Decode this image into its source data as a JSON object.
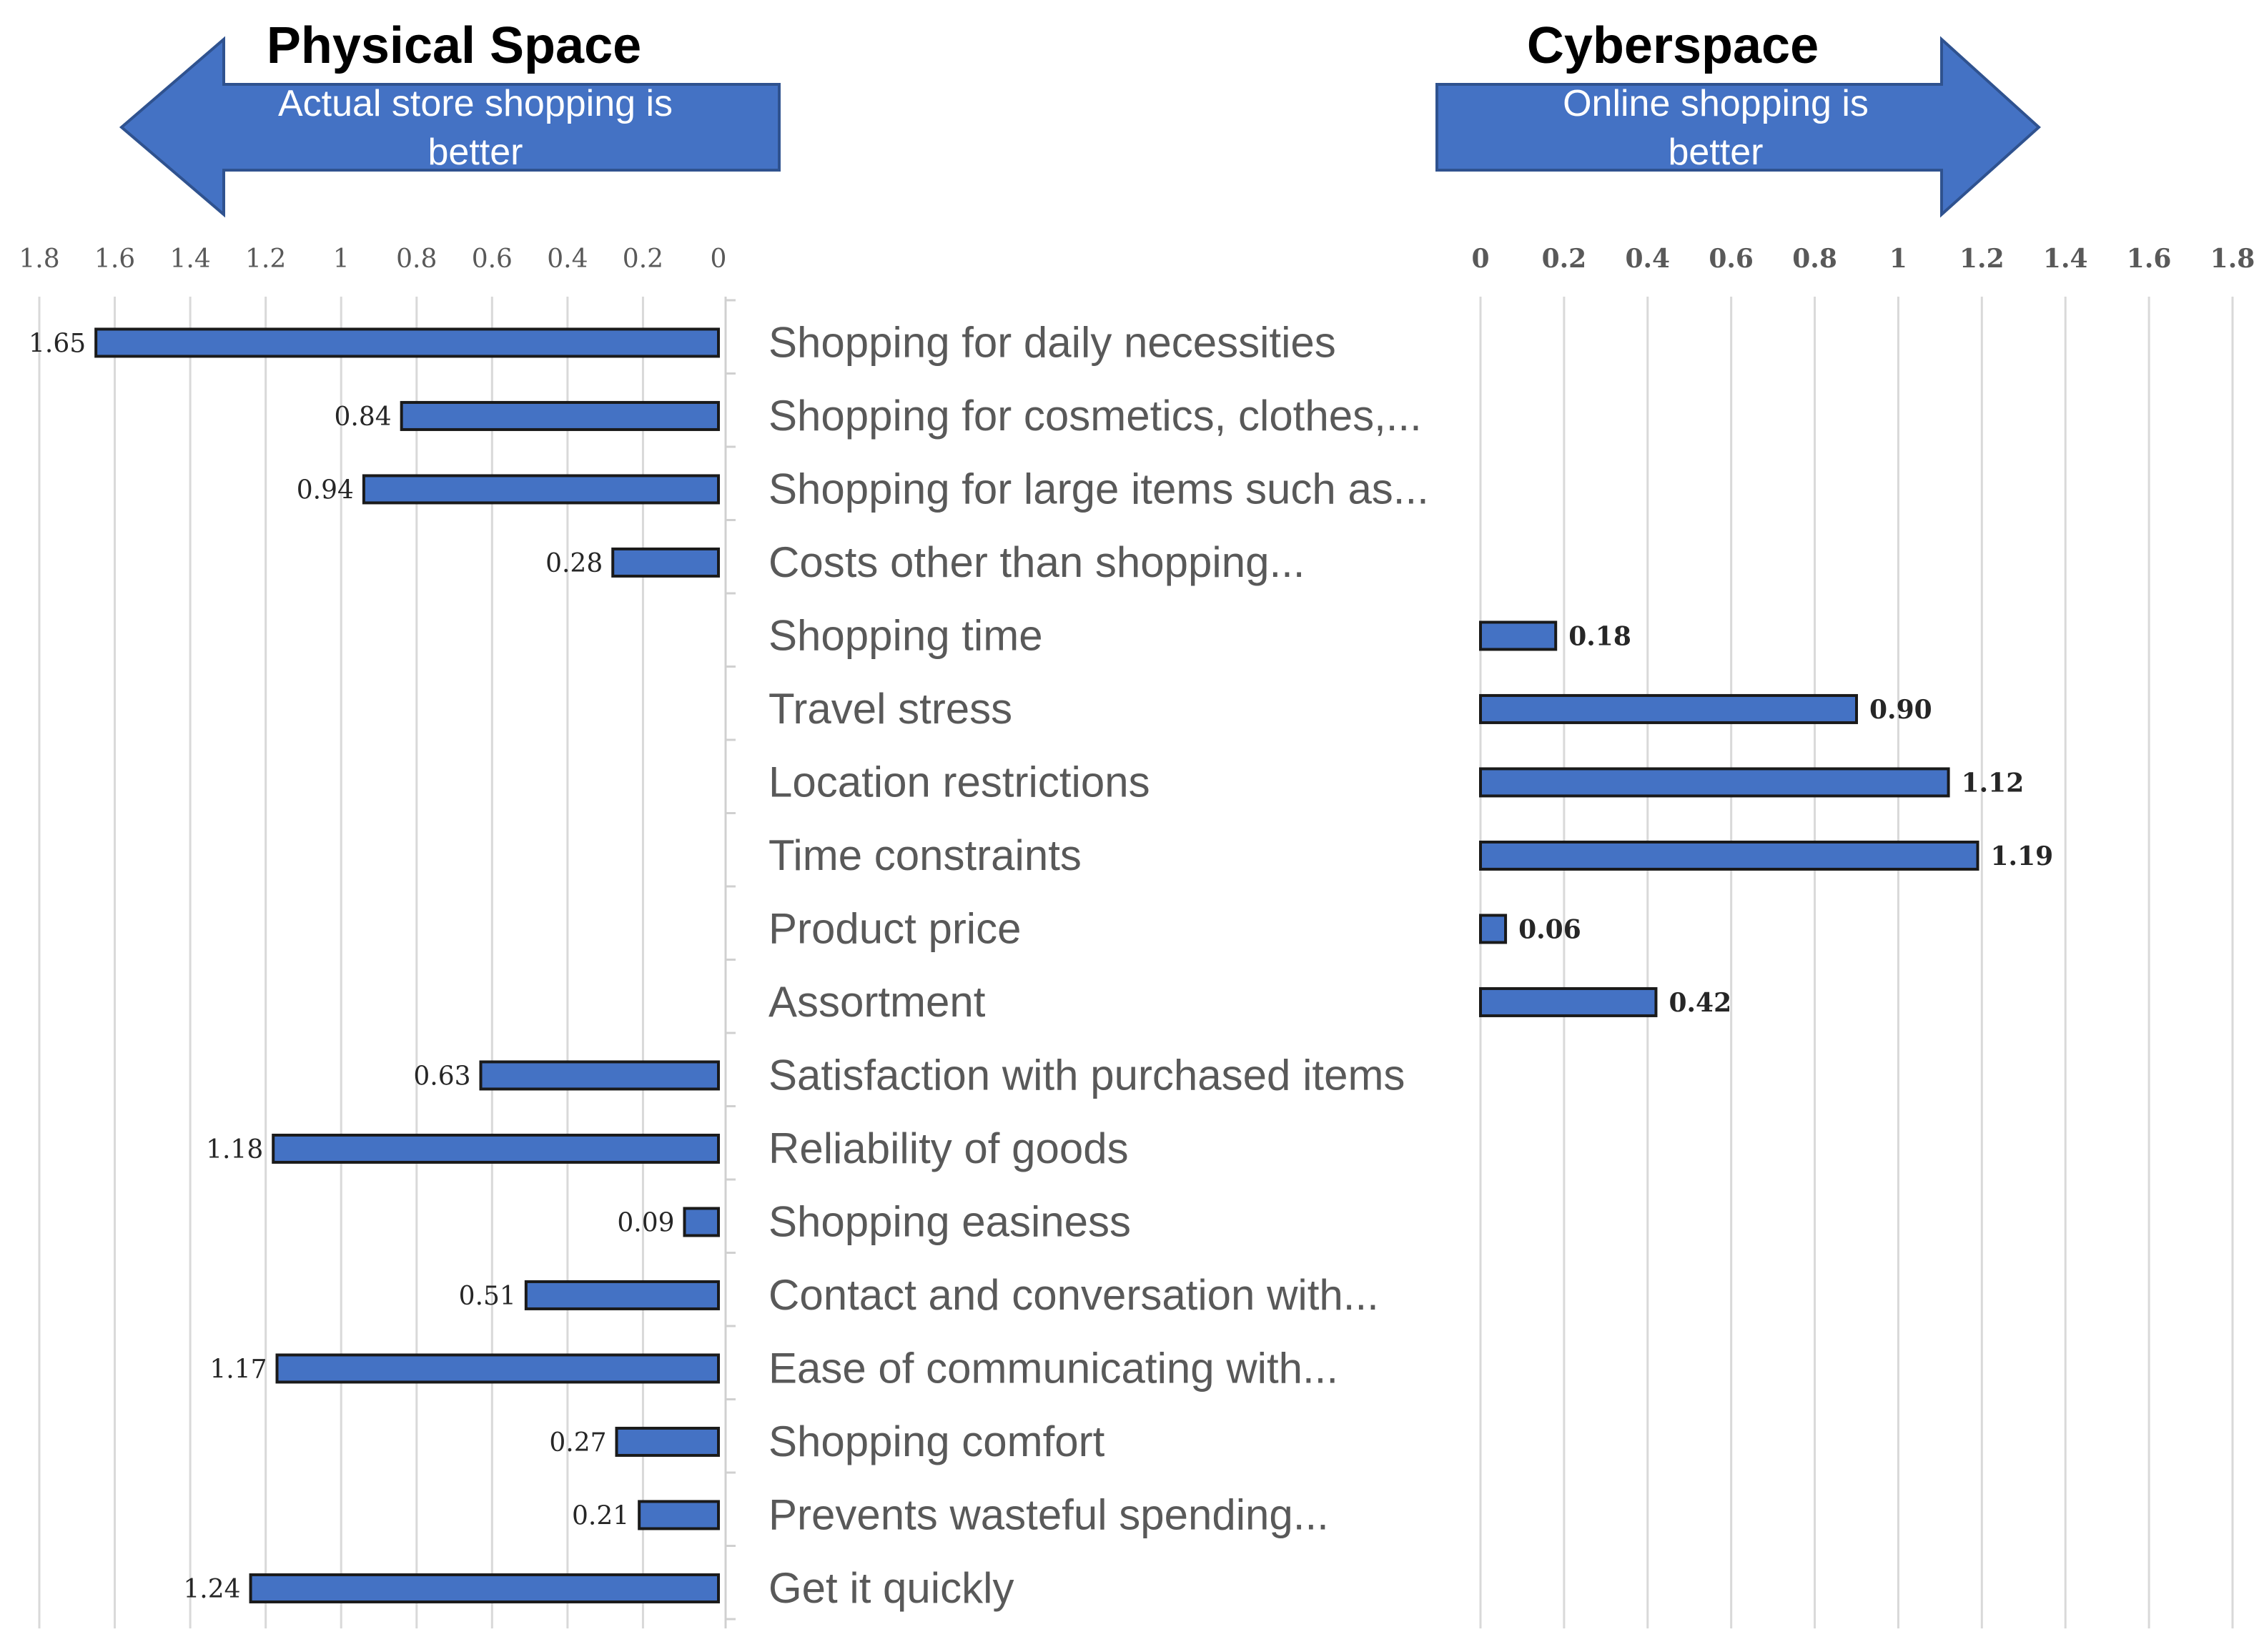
{
  "headers": {
    "left_title": "Physical Space",
    "left_arrow_line1": "Actual store shopping is",
    "left_arrow_line2": "better",
    "right_title": "Cyberspace",
    "right_arrow_line1": "Online shopping is",
    "right_arrow_line2": "better"
  },
  "colors": {
    "bar_fill": "#4472c4",
    "bar_stroke": "#1a1a1a",
    "arrow_fill": "#4472c4",
    "arrow_stroke": "#2f528f",
    "grid": "#d9d9d9"
  },
  "chart_data": {
    "type": "bar",
    "orientation": "horizontal",
    "categories": [
      "Shopping for daily necessities",
      "Shopping for cosmetics, clothes,...",
      "Shopping for large items such as...",
      "Costs other than shopping...",
      "Shopping time",
      "Travel stress",
      "Location restrictions",
      "Time constraints",
      "Product price",
      "Assortment",
      "Satisfaction with purchased items",
      "Reliability of goods",
      "Shopping easiness",
      "Contact and conversation with...",
      "Ease of communicating with...",
      "Shopping comfort",
      "Prevents wasteful spending...",
      "Get it quickly"
    ],
    "left": {
      "label": "Physical Space",
      "xlim": [
        0,
        1.8
      ],
      "reversed": true,
      "ticks": [
        "1.8",
        "1.6",
        "1.4",
        "1.2",
        "1",
        "0.8",
        "0.6",
        "0.4",
        "0.2",
        "0"
      ],
      "values": [
        1.65,
        0.84,
        0.94,
        0.28,
        null,
        null,
        null,
        null,
        null,
        null,
        0.63,
        1.18,
        0.09,
        0.51,
        1.17,
        0.27,
        0.21,
        1.24
      ],
      "labels": [
        "1.65",
        "0.84",
        "0.94",
        "0.28",
        "",
        "",
        "",
        "",
        "",
        "",
        "0.63",
        "1.18",
        "0.09",
        "0.51",
        "1.17",
        "0.27",
        "0.21",
        "1.24"
      ]
    },
    "right": {
      "label": "Cyberspace",
      "xlim": [
        0,
        1.8
      ],
      "ticks": [
        "0",
        "0.2",
        "0.4",
        "0.6",
        "0.8",
        "1",
        "1.2",
        "1.4",
        "1.6",
        "1.8"
      ],
      "values": [
        null,
        null,
        null,
        null,
        0.18,
        0.9,
        1.12,
        1.19,
        0.06,
        0.42,
        null,
        null,
        null,
        null,
        null,
        null,
        null,
        null
      ],
      "labels": [
        "",
        "",
        "",
        "",
        "0.18",
        "0.90",
        "1.12",
        "1.19",
        "0.06",
        "0.42",
        "",
        "",
        "",
        "",
        "",
        "",
        "",
        ""
      ]
    },
    "grid": true
  }
}
